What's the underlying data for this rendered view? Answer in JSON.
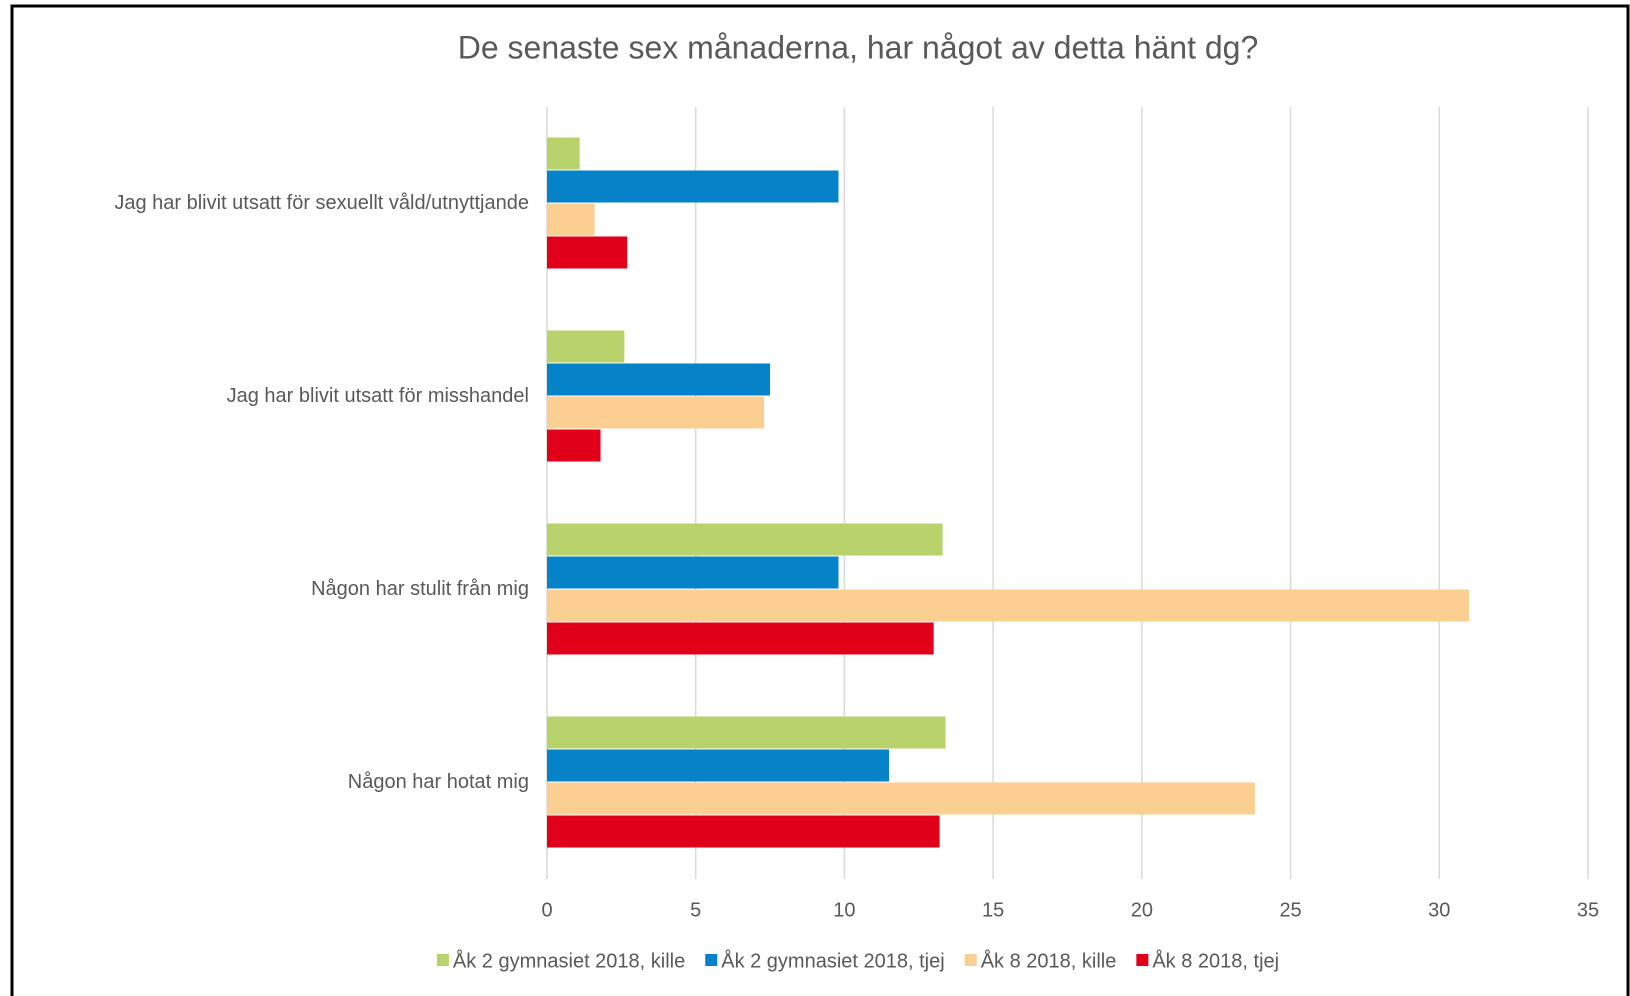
{
  "chart_data": {
    "type": "hbar",
    "title": "De senaste sex månaderna, har något av detta hänt dg?",
    "categories": [
      "Jag har blivit utsatt för sexuellt våld/utnyttjande",
      "Jag har blivit utsatt för misshandel",
      "Någon har stulit från mig",
      "Någon har hotat mig"
    ],
    "series": [
      {
        "name": "Åk 2 gymnasiet 2018, kille",
        "color": "#b9d36c",
        "values": [
          1.1,
          2.6,
          13.3,
          13.4
        ]
      },
      {
        "name": "Åk 2 gymnasiet 2018, tjej",
        "color": "#0582c8",
        "values": [
          9.8,
          7.5,
          9.8,
          11.5
        ]
      },
      {
        "name": "Åk 8 2018, kille",
        "color": "#facf91",
        "values": [
          1.6,
          7.3,
          31.0,
          23.8
        ]
      },
      {
        "name": "Åk 8 2018, tjej",
        "color": "#e0001a",
        "values": [
          2.7,
          1.8,
          13.0,
          13.2
        ]
      }
    ],
    "xlim": [
      0,
      35
    ],
    "xticks": [
      0,
      5,
      10,
      15,
      20,
      25,
      30,
      35
    ],
    "grid": true,
    "legend": "bottom"
  }
}
